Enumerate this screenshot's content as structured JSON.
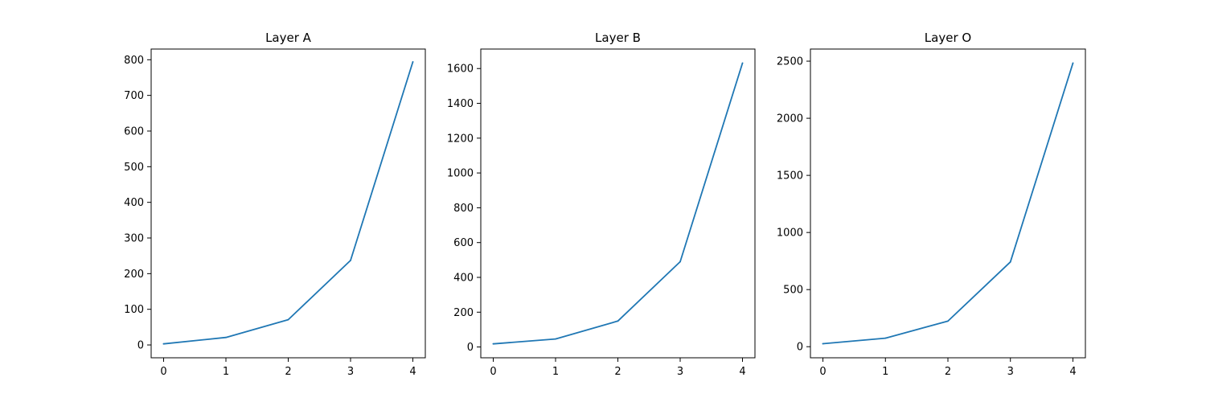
{
  "chart_data": [
    {
      "type": "line",
      "title": "Layer A",
      "x": [
        0,
        1,
        2,
        3,
        4
      ],
      "series": [
        {
          "values": [
            3,
            21,
            71,
            237,
            794
          ]
        }
      ],
      "xticks": [
        0,
        1,
        2,
        3,
        4
      ],
      "yticks": [
        0,
        100,
        200,
        300,
        400,
        500,
        600,
        700,
        800
      ],
      "xlim": [
        -0.2,
        4.2
      ],
      "ylim": [
        -36,
        830
      ],
      "grid": false,
      "color": "#1f77b4"
    },
    {
      "type": "line",
      "title": "Layer B",
      "x": [
        0,
        1,
        2,
        3,
        4
      ],
      "series": [
        {
          "values": [
            18,
            46,
            149,
            490,
            1631
          ]
        }
      ],
      "xticks": [
        0,
        1,
        2,
        3,
        4
      ],
      "yticks": [
        0,
        200,
        400,
        600,
        800,
        1000,
        1200,
        1400,
        1600
      ],
      "xlim": [
        -0.2,
        4.2
      ],
      "ylim": [
        -62,
        1712
      ],
      "grid": false,
      "color": "#1f77b4"
    },
    {
      "type": "line",
      "title": "Layer O",
      "x": [
        0,
        1,
        2,
        3,
        4
      ],
      "series": [
        {
          "values": [
            26,
            75,
            224,
            742,
            2483
          ]
        }
      ],
      "xticks": [
        0,
        1,
        2,
        3,
        4
      ],
      "yticks": [
        0,
        500,
        1000,
        1500,
        2000,
        2500
      ],
      "xlim": [
        -0.2,
        4.2
      ],
      "ylim": [
        -97,
        2606
      ],
      "grid": false,
      "color": "#1f77b4"
    }
  ]
}
